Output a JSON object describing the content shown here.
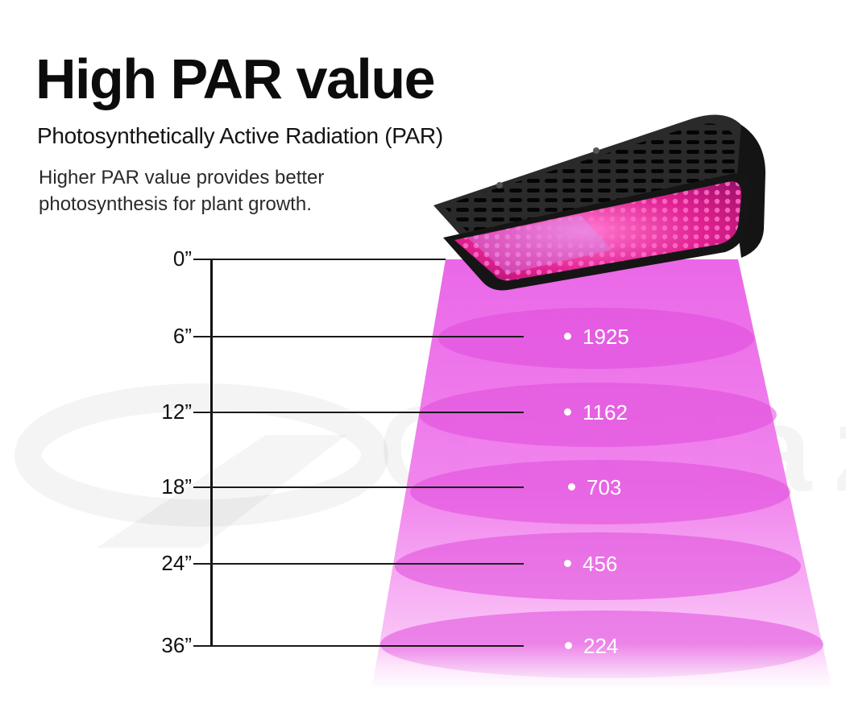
{
  "title": "High PAR value",
  "subtitle": "Photosynthetically Active Radiation (PAR)",
  "description": {
    "line1": "Higher PAR value provides better",
    "line2": "photosynthesis for plant growth."
  },
  "watermark": "OZPlaza",
  "colors": {
    "beam": "#ee66ee",
    "beam_light": "#f8b8f5",
    "ellipse": "#e651e2",
    "housing": "#1c1c1c",
    "led_pink": "#ff2f8f",
    "led_violet": "#c48cff"
  },
  "distances": [
    {
      "label": "0”",
      "par": ""
    },
    {
      "label": "6”",
      "par": "1925"
    },
    {
      "label": "12”",
      "par": "1162"
    },
    {
      "label": "18”",
      "par": "703"
    },
    {
      "label": "24”",
      "par": "456"
    },
    {
      "label": "36”",
      "par": "224"
    }
  ]
}
